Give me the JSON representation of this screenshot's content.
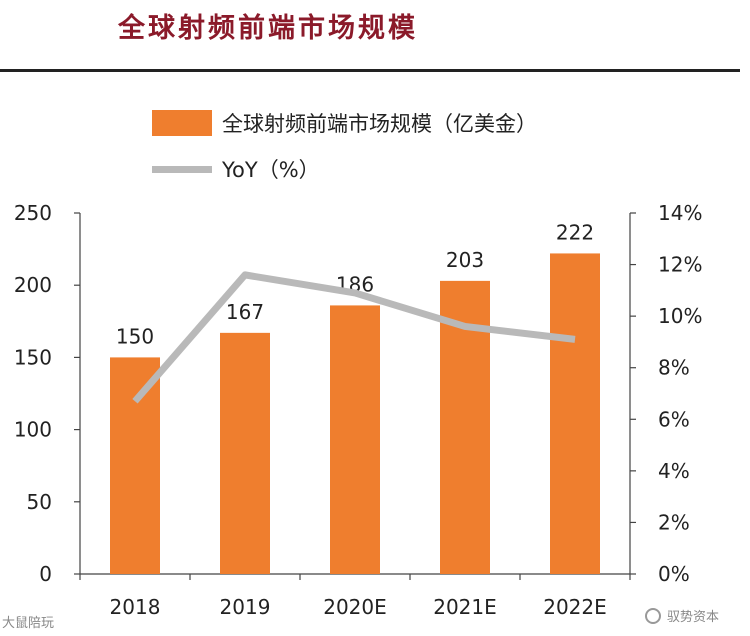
{
  "header": {
    "title": "全球射频前端市场规模"
  },
  "legend": {
    "bar_label": "全球射频前端市场规模（亿美金）",
    "line_label": "YoY（%）"
  },
  "colors": {
    "bar": "#ef7e2e",
    "line": "#b9b9b9",
    "title": "#8b1a2a",
    "axis": "#222222"
  },
  "chart_data": {
    "type": "bar",
    "categories": [
      "2018",
      "2019",
      "2020E",
      "2021E",
      "2022E"
    ],
    "series": [
      {
        "name": "全球射频前端市场规模（亿美金）",
        "type": "bar",
        "axis": "left",
        "values": [
          150,
          167,
          186,
          203,
          222
        ]
      },
      {
        "name": "YoY（%）",
        "type": "line",
        "axis": "right",
        "values": [
          6.7,
          11.6,
          10.9,
          9.6,
          9.1
        ]
      }
    ],
    "data_labels": [
      "150",
      "167",
      "186",
      "203",
      "222"
    ],
    "y_left": {
      "min": 0,
      "max": 250,
      "ticks": [
        0,
        50,
        100,
        150,
        200,
        250
      ]
    },
    "y_right": {
      "min": 0,
      "max": 14,
      "ticks": [
        "0%",
        "2%",
        "4%",
        "6%",
        "8%",
        "10%",
        "12%",
        "14%"
      ]
    },
    "legend_position": "top-left"
  },
  "watermarks": {
    "left": "大鼠陪玩",
    "right": "驭势资本"
  }
}
